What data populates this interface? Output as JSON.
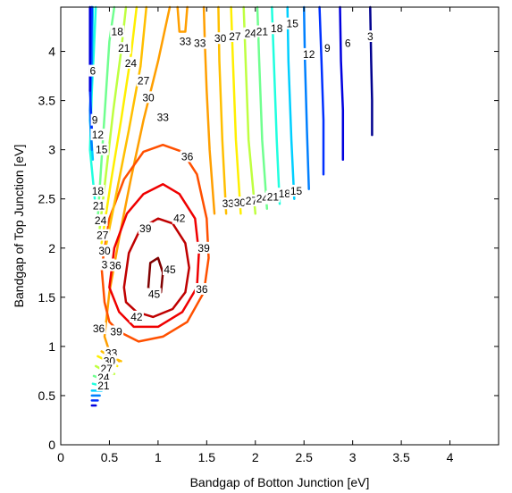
{
  "chart_data": {
    "type": "contour",
    "xlabel": "Bandgap of Botton Junction [eV]",
    "ylabel": "Bandgap of Top Junction [eV]",
    "xlim": [
      0,
      4.5
    ],
    "ylim": [
      0,
      4.45
    ],
    "xticks": [
      "0",
      "0.5",
      "1",
      "1.5",
      "2",
      "2.5",
      "3",
      "3.5",
      "4"
    ],
    "yticks": [
      "0",
      "0.5",
      "1",
      "1.5",
      "2",
      "2.5",
      "3",
      "3.5",
      "4"
    ],
    "grid": false,
    "colormap": "jet",
    "levels": [
      3,
      6,
      9,
      12,
      15,
      18,
      21,
      24,
      27,
      30,
      33,
      36,
      39,
      42,
      45
    ],
    "level_colors": {
      "3": "#00008f",
      "6": "#0000df",
      "9": "#0030ff",
      "12": "#0080ff",
      "15": "#00cfff",
      "18": "#20ffdf",
      "21": "#70ff8f",
      "24": "#bfff40",
      "27": "#ffef00",
      "30": "#ffbf00",
      "33": "#ff9f00",
      "36": "#ff5000",
      "39": "#ef0000",
      "42": "#bf0000",
      "45": "#800000"
    },
    "contours": [
      {
        "level": 3,
        "points": [
          [
            3.2,
            3.15
          ],
          [
            3.2,
            3.5
          ],
          [
            3.19,
            3.9
          ],
          [
            3.18,
            4.45
          ]
        ]
      },
      {
        "level": 6,
        "points": [
          [
            2.9,
            2.9
          ],
          [
            2.9,
            3.4
          ],
          [
            2.88,
            3.9
          ],
          [
            2.87,
            4.45
          ]
        ]
      },
      {
        "level": 9,
        "points": [
          [
            2.7,
            2.75
          ],
          [
            2.7,
            3.3
          ],
          [
            2.68,
            3.9
          ],
          [
            2.66,
            4.45
          ]
        ]
      },
      {
        "level": 12,
        "points": [
          [
            2.55,
            2.6
          ],
          [
            2.53,
            3.2
          ],
          [
            2.51,
            3.9
          ],
          [
            2.5,
            4.45
          ]
        ]
      },
      {
        "level": 15,
        "points": [
          [
            2.4,
            2.5
          ],
          [
            2.37,
            3.1
          ],
          [
            2.34,
            3.9
          ],
          [
            2.33,
            4.45
          ]
        ]
      },
      {
        "level": 18,
        "points": [
          [
            2.25,
            2.45
          ],
          [
            2.22,
            3.1
          ],
          [
            2.19,
            3.9
          ],
          [
            2.17,
            4.45
          ]
        ]
      },
      {
        "level": 21,
        "points": [
          [
            2.12,
            2.4
          ],
          [
            2.07,
            3.1
          ],
          [
            2.04,
            3.9
          ],
          [
            2.02,
            4.45
          ]
        ]
      },
      {
        "level": 24,
        "points": [
          [
            2.0,
            2.35
          ],
          [
            1.93,
            3.1
          ],
          [
            1.9,
            3.9
          ],
          [
            1.88,
            4.45
          ]
        ]
      },
      {
        "level": 27,
        "points": [
          [
            1.85,
            2.35
          ],
          [
            1.8,
            3.1
          ],
          [
            1.77,
            3.9
          ],
          [
            1.75,
            4.45
          ]
        ]
      },
      {
        "level": 30,
        "points": [
          [
            1.7,
            2.35
          ],
          [
            1.66,
            3.1
          ],
          [
            1.63,
            3.9
          ],
          [
            1.62,
            4.45
          ]
        ]
      },
      {
        "level": 33,
        "points": [
          [
            1.58,
            2.35
          ],
          [
            1.53,
            3.0
          ],
          [
            1.5,
            3.6
          ],
          [
            1.48,
            4.1
          ],
          [
            1.47,
            4.45
          ]
        ]
      },
      {
        "level": 33,
        "points": [
          [
            1.2,
            4.45
          ],
          [
            1.22,
            4.2
          ],
          [
            1.28,
            4.2
          ],
          [
            1.3,
            4.45
          ]
        ]
      },
      {
        "level": 33,
        "points": [
          [
            1.12,
            4.45
          ],
          [
            1.0,
            3.9
          ],
          [
            0.85,
            3.3
          ],
          [
            0.72,
            2.7
          ],
          [
            0.6,
            2.1
          ],
          [
            0.5,
            1.55
          ],
          [
            0.45,
            1.1
          ],
          [
            0.5,
            0.95
          ],
          [
            0.6,
            0.85
          ]
        ]
      },
      {
        "level": 36,
        "points": [
          [
            0.45,
            1.45
          ],
          [
            0.42,
            1.8
          ],
          [
            0.5,
            2.3
          ],
          [
            0.65,
            2.7
          ],
          [
            0.85,
            2.98
          ],
          [
            1.05,
            3.05
          ],
          [
            1.25,
            2.98
          ],
          [
            1.4,
            2.75
          ],
          [
            1.5,
            2.3
          ],
          [
            1.52,
            1.9
          ],
          [
            1.47,
            1.55
          ],
          [
            1.3,
            1.25
          ],
          [
            1.05,
            1.1
          ],
          [
            0.8,
            1.05
          ],
          [
            0.6,
            1.15
          ],
          [
            0.5,
            1.25
          ],
          [
            0.45,
            1.45
          ]
        ]
      },
      {
        "level": 39,
        "points": [
          [
            0.5,
            1.6
          ],
          [
            0.55,
            2.0
          ],
          [
            0.68,
            2.35
          ],
          [
            0.85,
            2.55
          ],
          [
            1.05,
            2.65
          ],
          [
            1.22,
            2.55
          ],
          [
            1.38,
            2.3
          ],
          [
            1.42,
            1.95
          ],
          [
            1.4,
            1.6
          ],
          [
            1.25,
            1.35
          ],
          [
            1.0,
            1.2
          ],
          [
            0.75,
            1.2
          ],
          [
            0.6,
            1.35
          ],
          [
            0.5,
            1.6
          ]
        ]
      },
      {
        "level": 42,
        "points": [
          [
            0.65,
            1.6
          ],
          [
            0.7,
            1.95
          ],
          [
            0.82,
            2.2
          ],
          [
            1.0,
            2.3
          ],
          [
            1.15,
            2.25
          ],
          [
            1.28,
            2.05
          ],
          [
            1.32,
            1.8
          ],
          [
            1.28,
            1.55
          ],
          [
            1.15,
            1.38
          ],
          [
            0.95,
            1.3
          ],
          [
            0.78,
            1.35
          ],
          [
            0.67,
            1.45
          ],
          [
            0.65,
            1.6
          ]
        ]
      },
      {
        "level": 45,
        "points": [
          [
            0.9,
            1.6
          ],
          [
            0.92,
            1.85
          ],
          [
            1.0,
            1.9
          ],
          [
            1.05,
            1.75
          ],
          [
            1.03,
            1.55
          ],
          [
            0.95,
            1.5
          ],
          [
            0.9,
            1.6
          ]
        ]
      },
      {
        "level": 18,
        "points": [
          [
            0.35,
            2.5
          ],
          [
            0.3,
            3.0
          ],
          [
            0.32,
            3.6
          ],
          [
            0.34,
            4.0
          ],
          [
            0.36,
            4.45
          ]
        ]
      },
      {
        "level": 15,
        "points": [
          [
            0.33,
            2.9
          ],
          [
            0.3,
            3.3
          ],
          [
            0.32,
            3.8
          ],
          [
            0.33,
            4.45
          ]
        ]
      },
      {
        "level": 12,
        "points": [
          [
            0.32,
            3.0
          ],
          [
            0.3,
            3.4
          ],
          [
            0.32,
            3.9
          ],
          [
            0.32,
            4.45
          ]
        ]
      },
      {
        "level": 9,
        "points": [
          [
            0.32,
            3.2
          ],
          [
            0.3,
            3.6
          ],
          [
            0.31,
            4.1
          ],
          [
            0.32,
            4.45
          ]
        ]
      },
      {
        "level": 6,
        "points": [
          [
            0.3,
            3.6
          ],
          [
            0.3,
            3.95
          ],
          [
            0.3,
            4.45
          ]
        ]
      },
      {
        "level": 21,
        "points": [
          [
            0.38,
            2.3
          ],
          [
            0.42,
            2.9
          ],
          [
            0.46,
            3.5
          ],
          [
            0.5,
            4.1
          ],
          [
            0.55,
            4.45
          ]
        ]
      },
      {
        "level": 24,
        "points": [
          [
            0.4,
            2.2
          ],
          [
            0.47,
            2.8
          ],
          [
            0.54,
            3.4
          ],
          [
            0.62,
            4.0
          ],
          [
            0.67,
            4.45
          ]
        ]
      },
      {
        "level": 27,
        "points": [
          [
            0.42,
            2.05
          ],
          [
            0.52,
            2.7
          ],
          [
            0.62,
            3.3
          ],
          [
            0.72,
            3.95
          ],
          [
            0.78,
            4.45
          ]
        ]
      },
      {
        "level": 30,
        "points": [
          [
            0.45,
            1.95
          ],
          [
            0.58,
            2.6
          ],
          [
            0.7,
            3.2
          ],
          [
            0.82,
            3.85
          ],
          [
            0.88,
            4.45
          ]
        ]
      },
      {
        "level": 30,
        "points": [
          [
            0.42,
            0.95
          ],
          [
            0.5,
            0.9
          ],
          [
            0.62,
            0.85
          ]
        ]
      },
      {
        "level": 27,
        "points": [
          [
            0.38,
            0.9
          ],
          [
            0.48,
            0.85
          ],
          [
            0.58,
            0.8
          ]
        ]
      },
      {
        "level": 24,
        "points": [
          [
            0.36,
            0.8
          ],
          [
            0.45,
            0.75
          ],
          [
            0.55,
            0.72
          ]
        ]
      },
      {
        "level": 21,
        "points": [
          [
            0.34,
            0.7
          ],
          [
            0.42,
            0.67
          ],
          [
            0.5,
            0.65
          ]
        ]
      },
      {
        "level": 18,
        "points": [
          [
            0.33,
            0.62
          ],
          [
            0.42,
            0.6
          ],
          [
            0.48,
            0.6
          ]
        ]
      },
      {
        "level": 15,
        "points": [
          [
            0.32,
            0.55
          ],
          [
            0.42,
            0.55
          ]
        ]
      },
      {
        "level": 12,
        "points": [
          [
            0.32,
            0.5
          ],
          [
            0.4,
            0.5
          ]
        ]
      },
      {
        "level": 9,
        "points": [
          [
            0.32,
            0.45
          ],
          [
            0.38,
            0.45
          ]
        ]
      },
      {
        "level": 6,
        "points": [
          [
            0.32,
            0.4
          ],
          [
            0.36,
            0.4
          ]
        ]
      }
    ],
    "contour_labels": [
      {
        "text": "18",
        "x": 0.58,
        "y": 4.2
      },
      {
        "text": "21",
        "x": 0.65,
        "y": 4.03
      },
      {
        "text": "24",
        "x": 0.72,
        "y": 3.88
      },
      {
        "text": "27",
        "x": 0.85,
        "y": 3.7
      },
      {
        "text": "30",
        "x": 0.9,
        "y": 3.53
      },
      {
        "text": "33",
        "x": 1.05,
        "y": 3.33
      },
      {
        "text": "6",
        "x": 0.33,
        "y": 3.8
      },
      {
        "text": "9",
        "x": 0.35,
        "y": 3.3
      },
      {
        "text": "12",
        "x": 0.38,
        "y": 3.15
      },
      {
        "text": "15",
        "x": 0.42,
        "y": 3.0
      },
      {
        "text": "33",
        "x": 1.28,
        "y": 4.1
      },
      {
        "text": "33",
        "x": 1.43,
        "y": 4.08
      },
      {
        "text": "30",
        "x": 1.64,
        "y": 4.13
      },
      {
        "text": "27",
        "x": 1.79,
        "y": 4.15
      },
      {
        "text": "24",
        "x": 1.95,
        "y": 4.18
      },
      {
        "text": "21",
        "x": 2.07,
        "y": 4.2
      },
      {
        "text": "18",
        "x": 2.22,
        "y": 4.23
      },
      {
        "text": "15",
        "x": 2.38,
        "y": 4.28
      },
      {
        "text": "12",
        "x": 2.55,
        "y": 3.97
      },
      {
        "text": "9",
        "x": 2.74,
        "y": 4.03
      },
      {
        "text": "6",
        "x": 2.95,
        "y": 4.08
      },
      {
        "text": "3",
        "x": 3.18,
        "y": 4.15
      },
      {
        "text": "36",
        "x": 1.3,
        "y": 2.93
      },
      {
        "text": "33",
        "x": 1.72,
        "y": 2.45
      },
      {
        "text": "30",
        "x": 1.84,
        "y": 2.46
      },
      {
        "text": "27",
        "x": 1.96,
        "y": 2.48
      },
      {
        "text": "24",
        "x": 2.07,
        "y": 2.5
      },
      {
        "text": "21",
        "x": 2.18,
        "y": 2.52
      },
      {
        "text": "18",
        "x": 2.3,
        "y": 2.55
      },
      {
        "text": "15",
        "x": 2.42,
        "y": 2.58
      },
      {
        "text": "18",
        "x": 0.38,
        "y": 2.58
      },
      {
        "text": "21",
        "x": 0.39,
        "y": 2.43
      },
      {
        "text": "24",
        "x": 0.41,
        "y": 2.28
      },
      {
        "text": "27",
        "x": 0.43,
        "y": 2.13
      },
      {
        "text": "30",
        "x": 0.45,
        "y": 1.97
      },
      {
        "text": "33",
        "x": 0.48,
        "y": 1.83
      },
      {
        "text": "36",
        "x": 0.56,
        "y": 1.82
      },
      {
        "text": "39",
        "x": 0.87,
        "y": 2.2
      },
      {
        "text": "42",
        "x": 1.22,
        "y": 2.3
      },
      {
        "text": "39",
        "x": 1.47,
        "y": 2.0
      },
      {
        "text": "45",
        "x": 1.12,
        "y": 1.78
      },
      {
        "text": "45",
        "x": 0.96,
        "y": 1.53
      },
      {
        "text": "36",
        "x": 1.45,
        "y": 1.58
      },
      {
        "text": "42",
        "x": 0.78,
        "y": 1.3
      },
      {
        "text": "36",
        "x": 0.39,
        "y": 1.18
      },
      {
        "text": "39",
        "x": 0.57,
        "y": 1.15
      },
      {
        "text": "33",
        "x": 0.52,
        "y": 0.93
      },
      {
        "text": "30",
        "x": 0.5,
        "y": 0.85
      },
      {
        "text": "27",
        "x": 0.47,
        "y": 0.77
      },
      {
        "text": "24",
        "x": 0.44,
        "y": 0.68
      },
      {
        "text": "21",
        "x": 0.44,
        "y": 0.6
      }
    ]
  }
}
